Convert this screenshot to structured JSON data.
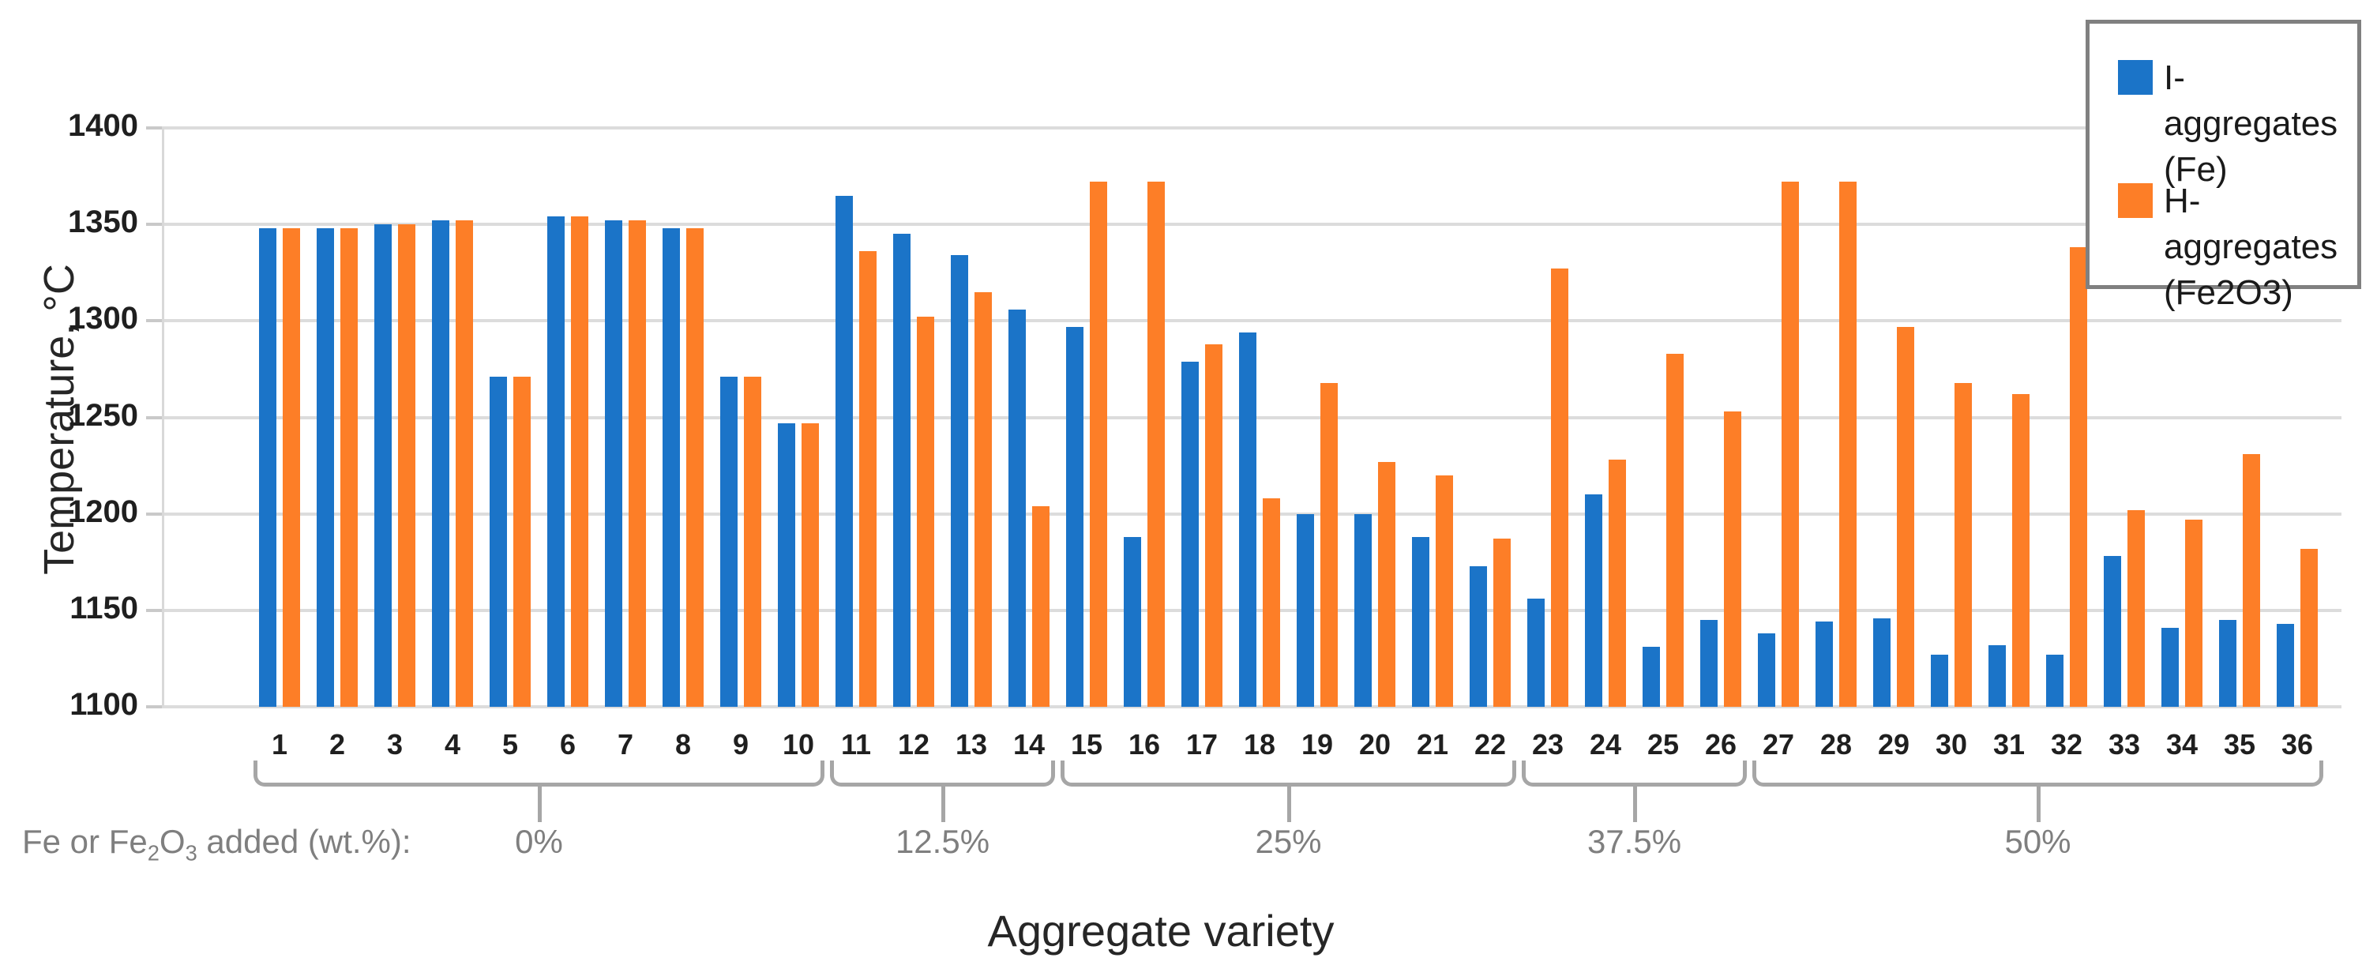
{
  "chart_data": {
    "type": "bar",
    "title": "",
    "xlabel": "Aggregate variety",
    "ylabel": "Temperature, °C",
    "ylim": [
      1100,
      1400
    ],
    "yticks": [
      1400,
      1350,
      1300,
      1250,
      1200,
      1150,
      1100
    ],
    "grid": true,
    "legend_position": "top-right",
    "categories": [
      "1",
      "2",
      "3",
      "4",
      "5",
      "6",
      "7",
      "8",
      "9",
      "10",
      "11",
      "12",
      "13",
      "14",
      "15",
      "16",
      "17",
      "18",
      "19",
      "20",
      "21",
      "22",
      "23",
      "24",
      "25",
      "26",
      "27",
      "28",
      "29",
      "30",
      "31",
      "32",
      "33",
      "34",
      "35",
      "36"
    ],
    "series": [
      {
        "name": "I-aggregates (Fe)",
        "color": "#1b74c8",
        "values": [
          1348,
          1348,
          1350,
          1352,
          1271,
          1354,
          1352,
          1348,
          1271,
          1247,
          1365,
          1345,
          1334,
          1306,
          1297,
          1188,
          1279,
          1294,
          1200,
          1200,
          1188,
          1173,
          1156,
          1210,
          1131,
          1145,
          1138,
          1144,
          1146,
          1127,
          1132,
          1127,
          1178,
          1141,
          1145,
          1143
        ]
      },
      {
        "name": "H-aggregates (Fe2O3)",
        "color": "#fd7e27",
        "values": [
          1348,
          1348,
          1350,
          1352,
          1271,
          1354,
          1352,
          1348,
          1271,
          1247,
          1336,
          1302,
          1315,
          1204,
          1372,
          1372,
          1288,
          1208,
          1268,
          1227,
          1220,
          1187,
          1327,
          1228,
          1283,
          1253,
          1372,
          1372,
          1297,
          1268,
          1262,
          1338,
          1202,
          1197,
          1231,
          1182
        ]
      }
    ],
    "groups": [
      {
        "label": "0%",
        "from": 1,
        "to": 10
      },
      {
        "label": "12.5%",
        "from": 11,
        "to": 14
      },
      {
        "label": "25%",
        "from": 15,
        "to": 22
      },
      {
        "label": "37.5%",
        "from": 23,
        "to": 26
      },
      {
        "label": "50%",
        "from": 27,
        "to": 36
      }
    ]
  },
  "legend": {
    "items": [
      {
        "icon": "blue-square-swatch",
        "line1": "I-aggregates",
        "line2": "(Fe)"
      },
      {
        "icon": "orange-square-swatch",
        "line1": "H-aggregates",
        "line2": "(Fe2O3)"
      }
    ]
  },
  "annotations": {
    "note_segments": [
      {
        "t": "Fe or Fe"
      },
      {
        "t": "2",
        "sub": true
      },
      {
        "t": "O"
      },
      {
        "t": "3",
        "sub": true
      },
      {
        "t": " added (wt.%):"
      }
    ]
  }
}
